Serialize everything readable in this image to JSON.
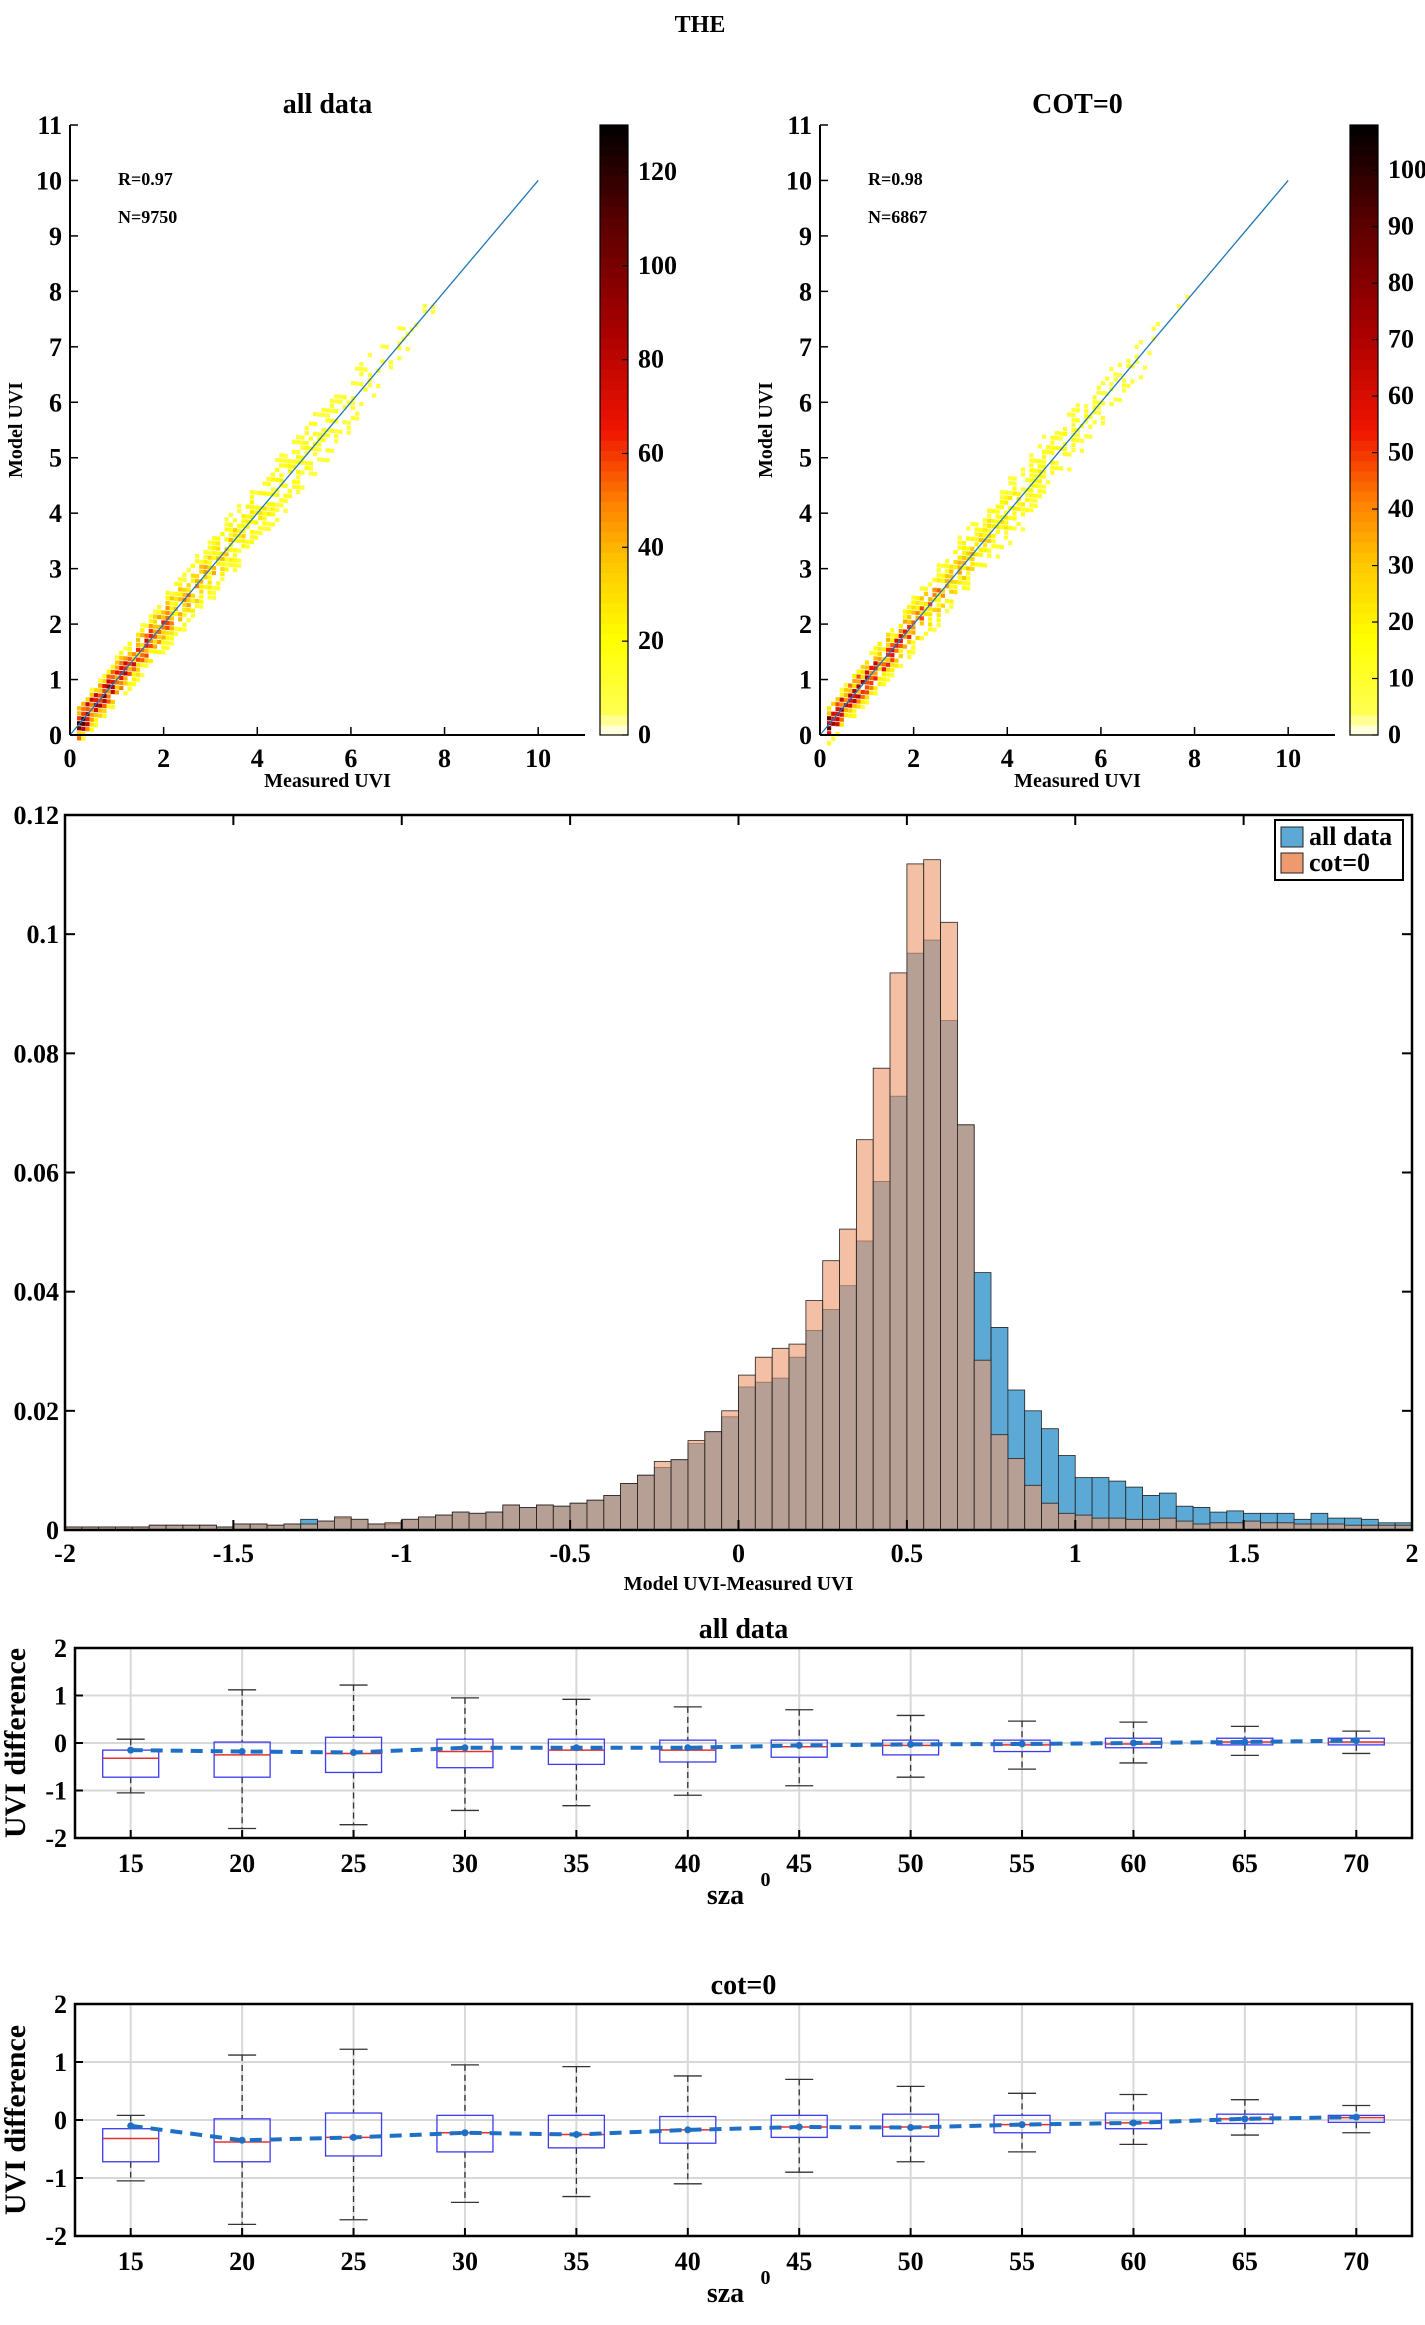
{
  "figure": {
    "title": "THE"
  },
  "chart_data": [
    {
      "id": "scatter_all",
      "type": "heatmap",
      "title": "all data",
      "xlabel": "Measured UVI",
      "ylabel": "Model UVI",
      "xlim": [
        0,
        11
      ],
      "ylim": [
        0,
        11
      ],
      "xticks": [
        0,
        2,
        4,
        6,
        8,
        10
      ],
      "yticks": [
        0,
        1,
        2,
        3,
        4,
        5,
        6,
        7,
        8,
        9,
        10,
        11
      ],
      "annotations": [
        "R=0.97",
        "N=9750"
      ],
      "reference_line": {
        "x": [
          0,
          10
        ],
        "y": [
          0,
          10
        ]
      },
      "colorbar": {
        "min": 0,
        "max": 130,
        "ticks": [
          0,
          20,
          40,
          60,
          80,
          100,
          120
        ]
      }
    },
    {
      "id": "scatter_cot0",
      "type": "heatmap",
      "title": "COT=0",
      "xlabel": "Measured UVI",
      "ylabel": "Model UVI",
      "xlim": [
        0,
        11
      ],
      "ylim": [
        0,
        11
      ],
      "xticks": [
        0,
        2,
        4,
        6,
        8,
        10
      ],
      "yticks": [
        0,
        1,
        2,
        3,
        4,
        5,
        6,
        7,
        8,
        9,
        10,
        11
      ],
      "annotations": [
        "R=0.98",
        "N=6867"
      ],
      "reference_line": {
        "x": [
          0,
          10
        ],
        "y": [
          0,
          10
        ]
      },
      "colorbar": {
        "min": 0,
        "max": 108,
        "ticks": [
          0,
          10,
          20,
          30,
          40,
          50,
          60,
          70,
          80,
          90,
          100
        ]
      }
    },
    {
      "id": "histogram",
      "type": "bar",
      "xlabel": "Model UVI-Measured UVI",
      "ylabel": "",
      "xlim": [
        -2,
        2
      ],
      "ylim": [
        0,
        0.12
      ],
      "xticks": [
        -2,
        -1.5,
        -1,
        -0.5,
        0,
        0.5,
        1,
        1.5,
        2
      ],
      "xtick_labels": [
        "-2",
        "-1.5",
        "-1",
        "-0.5",
        "0",
        "0.5",
        "1",
        "1.5",
        "2"
      ],
      "yticks": [
        0,
        0.02,
        0.04,
        0.06,
        0.08,
        0.1,
        0.12
      ],
      "ytick_labels": [
        "0",
        "0.02",
        "0.04",
        "0.06",
        "0.08",
        "0.1",
        "0.12"
      ],
      "legend": "top-right",
      "bin_start": -2,
      "bin_width": 0.05,
      "series": [
        {
          "name": "all data",
          "color": "#5da9d6",
          "values": [
            0.0005,
            0.0005,
            0.0005,
            0.0005,
            0.0005,
            0.0008,
            0.0008,
            0.0008,
            0.0008,
            0.0005,
            0.001,
            0.001,
            0.0008,
            0.001,
            0.0018,
            0.0015,
            0.002,
            0.0018,
            0.001,
            0.001,
            0.0018,
            0.0022,
            0.0025,
            0.003,
            0.0028,
            0.003,
            0.0042,
            0.0038,
            0.0042,
            0.004,
            0.0045,
            0.005,
            0.0058,
            0.0078,
            0.0092,
            0.0105,
            0.0118,
            0.0145,
            0.0165,
            0.019,
            0.024,
            0.0248,
            0.0255,
            0.029,
            0.0335,
            0.037,
            0.041,
            0.0485,
            0.0585,
            0.0728,
            0.0968,
            0.099,
            0.0855,
            0.068,
            0.0432,
            0.034,
            0.0235,
            0.02,
            0.017,
            0.0125,
            0.0088,
            0.0088,
            0.0082,
            0.0072,
            0.0058,
            0.0062,
            0.004,
            0.0038,
            0.003,
            0.0032,
            0.0028,
            0.0028,
            0.0028,
            0.0018,
            0.0028,
            0.002,
            0.002,
            0.0018,
            0.0012,
            0.0012,
            0.001,
            0.0008,
            0.0008,
            0.001,
            0.001,
            0.0008,
            0.0008,
            0.0005,
            0.0008,
            0.0005,
            0.0005
          ]
        },
        {
          "name": "cot=0",
          "color": "#ee9a6e",
          "values": [
            0.0005,
            0.0005,
            0.0005,
            0.0005,
            0.0005,
            0.0008,
            0.0008,
            0.0008,
            0.0008,
            0.0005,
            0.001,
            0.001,
            0.0008,
            0.001,
            0.001,
            0.0015,
            0.0022,
            0.0018,
            0.001,
            0.0012,
            0.0018,
            0.0022,
            0.0025,
            0.003,
            0.0028,
            0.003,
            0.0042,
            0.0038,
            0.0042,
            0.004,
            0.0045,
            0.005,
            0.0058,
            0.0078,
            0.0092,
            0.0115,
            0.0118,
            0.015,
            0.0165,
            0.02,
            0.026,
            0.029,
            0.0305,
            0.0312,
            0.0385,
            0.0452,
            0.0505,
            0.0655,
            0.0775,
            0.0935,
            0.1118,
            0.1125,
            0.102,
            0.068,
            0.0285,
            0.016,
            0.012,
            0.0075,
            0.0045,
            0.0028,
            0.0025,
            0.002,
            0.002,
            0.0018,
            0.0018,
            0.002,
            0.0015,
            0.001,
            0.0012,
            0.0012,
            0.0015,
            0.0012,
            0.0012,
            0.001,
            0.001,
            0.001,
            0.0008,
            0.0008,
            0.0008,
            0.0008,
            0.0005,
            0.0005,
            0.0005,
            0.0005,
            0.0008,
            0.0005,
            0.0005,
            0.0005,
            0.0005,
            0.0005,
            0.0005
          ]
        }
      ]
    },
    {
      "id": "box_all",
      "type": "box",
      "title": "all data",
      "xlabel": "sza",
      "xlabel_superscript": "0",
      "ylabel": "UVI difference",
      "ylim": [
        -2,
        2
      ],
      "yticks": [
        -2,
        -1,
        0,
        1,
        2
      ],
      "categories": [
        "15",
        "20",
        "25",
        "30",
        "35",
        "40",
        "45",
        "50",
        "55",
        "60",
        "65",
        "70"
      ],
      "means": [
        -0.15,
        -0.18,
        -0.2,
        -0.1,
        -0.1,
        -0.1,
        -0.05,
        -0.03,
        -0.02,
        0.0,
        0.02,
        0.05
      ],
      "boxes": [
        {
          "whisker_low": -1.05,
          "q1": -0.72,
          "median": -0.32,
          "q3": -0.15,
          "whisker_high": 0.08
        },
        {
          "whisker_low": -1.8,
          "q1": -0.72,
          "median": -0.25,
          "q3": 0.02,
          "whisker_high": 1.12
        },
        {
          "whisker_low": -1.72,
          "q1": -0.62,
          "median": -0.22,
          "q3": 0.12,
          "whisker_high": 1.22
        },
        {
          "whisker_low": -1.42,
          "q1": -0.52,
          "median": -0.18,
          "q3": 0.08,
          "whisker_high": 0.95
        },
        {
          "whisker_low": -1.32,
          "q1": -0.45,
          "median": -0.15,
          "q3": 0.08,
          "whisker_high": 0.92
        },
        {
          "whisker_low": -1.1,
          "q1": -0.4,
          "median": -0.15,
          "q3": 0.06,
          "whisker_high": 0.76
        },
        {
          "whisker_low": -0.9,
          "q1": -0.3,
          "median": -0.08,
          "q3": 0.06,
          "whisker_high": 0.7
        },
        {
          "whisker_low": -0.72,
          "q1": -0.25,
          "median": -0.05,
          "q3": 0.06,
          "whisker_high": 0.58
        },
        {
          "whisker_low": -0.55,
          "q1": -0.18,
          "median": -0.04,
          "q3": 0.06,
          "whisker_high": 0.46
        },
        {
          "whisker_low": -0.42,
          "q1": -0.1,
          "median": -0.02,
          "q3": 0.1,
          "whisker_high": 0.44
        },
        {
          "whisker_low": -0.26,
          "q1": -0.04,
          "median": 0.02,
          "q3": 0.1,
          "whisker_high": 0.35
        },
        {
          "whisker_low": -0.22,
          "q1": -0.04,
          "median": 0.02,
          "q3": 0.1,
          "whisker_high": 0.25
        }
      ]
    },
    {
      "id": "box_cot0",
      "type": "box",
      "title": "cot=0",
      "xlabel": "sza",
      "xlabel_superscript": "0",
      "ylabel": "UVI difference",
      "ylim": [
        -2,
        2
      ],
      "yticks": [
        -2,
        -1,
        0,
        1,
        2
      ],
      "categories": [
        "15",
        "20",
        "25",
        "30",
        "35",
        "40",
        "45",
        "50",
        "55",
        "60",
        "65",
        "70"
      ],
      "means": [
        -0.1,
        -0.35,
        -0.3,
        -0.22,
        -0.25,
        -0.17,
        -0.12,
        -0.13,
        -0.08,
        -0.05,
        0.02,
        0.05
      ],
      "boxes": [
        {
          "whisker_low": -1.05,
          "q1": -0.72,
          "median": -0.32,
          "q3": -0.15,
          "whisker_high": 0.08
        },
        {
          "whisker_low": -1.8,
          "q1": -0.72,
          "median": -0.38,
          "q3": 0.02,
          "whisker_high": 1.12
        },
        {
          "whisker_low": -1.72,
          "q1": -0.62,
          "median": -0.3,
          "q3": 0.12,
          "whisker_high": 1.22
        },
        {
          "whisker_low": -1.42,
          "q1": -0.55,
          "median": -0.22,
          "q3": 0.08,
          "whisker_high": 0.95
        },
        {
          "whisker_low": -1.32,
          "q1": -0.48,
          "median": -0.25,
          "q3": 0.08,
          "whisker_high": 0.92
        },
        {
          "whisker_low": -1.1,
          "q1": -0.4,
          "median": -0.17,
          "q3": 0.06,
          "whisker_high": 0.76
        },
        {
          "whisker_low": -0.9,
          "q1": -0.3,
          "median": -0.12,
          "q3": 0.08,
          "whisker_high": 0.7
        },
        {
          "whisker_low": -0.72,
          "q1": -0.28,
          "median": -0.12,
          "q3": 0.1,
          "whisker_high": 0.58
        },
        {
          "whisker_low": -0.55,
          "q1": -0.22,
          "median": -0.08,
          "q3": 0.08,
          "whisker_high": 0.46
        },
        {
          "whisker_low": -0.42,
          "q1": -0.15,
          "median": -0.05,
          "q3": 0.12,
          "whisker_high": 0.44
        },
        {
          "whisker_low": -0.26,
          "q1": -0.06,
          "median": 0.02,
          "q3": 0.1,
          "whisker_high": 0.35
        },
        {
          "whisker_low": -0.22,
          "q1": -0.04,
          "median": 0.04,
          "q3": 0.08,
          "whisker_high": 0.25
        }
      ]
    }
  ]
}
